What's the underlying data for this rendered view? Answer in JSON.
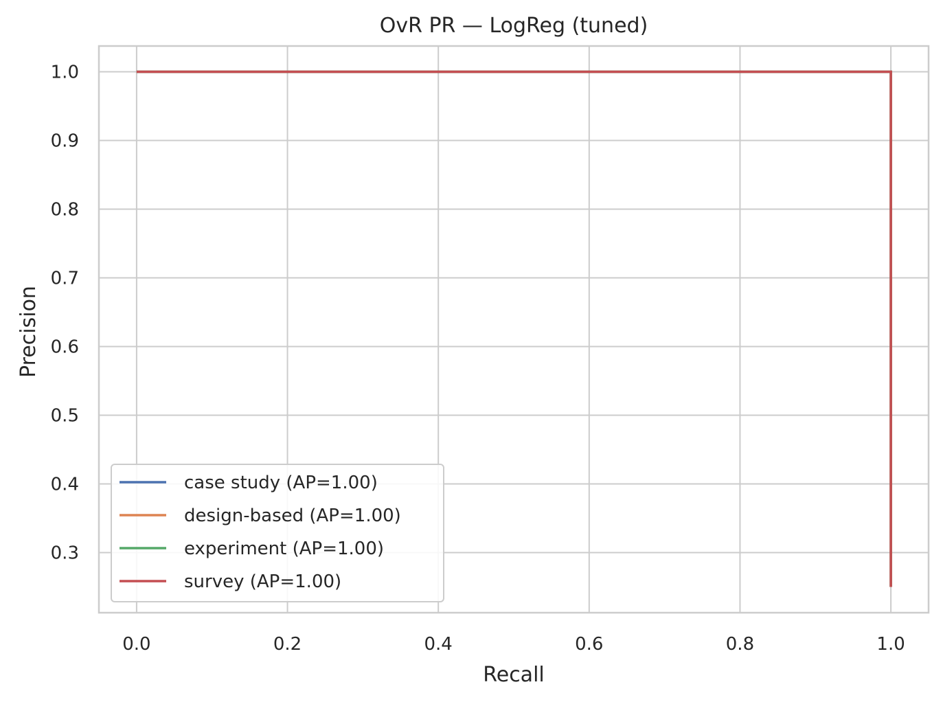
{
  "chart_data": {
    "type": "line",
    "title": "OvR PR — LogReg (tuned)",
    "xlabel": "Recall",
    "ylabel": "Precision",
    "xlim": [
      -0.05,
      1.05
    ],
    "ylim": [
      0.2125,
      1.0375
    ],
    "xticks": [
      0.0,
      0.2,
      0.4,
      0.6,
      0.8,
      1.0
    ],
    "yticks": [
      0.3,
      0.4,
      0.5,
      0.6,
      0.7,
      0.8,
      0.9,
      1.0
    ],
    "xtick_labels": [
      "0.0",
      "0.2",
      "0.4",
      "0.6",
      "0.8",
      "1.0"
    ],
    "ytick_labels": [
      "0.3",
      "0.4",
      "0.5",
      "0.6",
      "0.7",
      "0.8",
      "0.9",
      "1.0"
    ],
    "grid": true,
    "legend_position": "lower-left",
    "series": [
      {
        "name": "case study (AP=1.00)",
        "color": "#4c72b0",
        "x": [
          0.0,
          1.0,
          1.0
        ],
        "y": [
          1.0,
          1.0,
          0.25
        ]
      },
      {
        "name": "design-based (AP=1.00)",
        "color": "#dd8452",
        "x": [
          0.0,
          1.0,
          1.0
        ],
        "y": [
          1.0,
          1.0,
          0.25
        ]
      },
      {
        "name": "experiment (AP=1.00)",
        "color": "#55a868",
        "x": [
          0.0,
          1.0,
          1.0
        ],
        "y": [
          1.0,
          1.0,
          0.25
        ]
      },
      {
        "name": "survey (AP=1.00)",
        "color": "#c44e52",
        "x": [
          0.0,
          1.0,
          1.0
        ],
        "y": [
          1.0,
          1.0,
          0.25
        ]
      }
    ]
  }
}
